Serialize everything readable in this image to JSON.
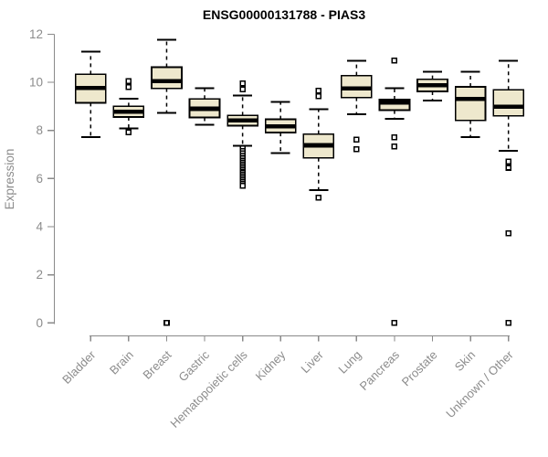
{
  "chart_data": {
    "type": "boxplot",
    "title": "ENSG00000131788 - PIAS3",
    "ylabel": "Expression",
    "xlabel": "",
    "ylim": [
      0,
      12
    ],
    "yticks": [
      0,
      2,
      4,
      6,
      8,
      10,
      12
    ],
    "grid": false,
    "legend": null,
    "categories": [
      "Bladder",
      "Brain",
      "Breast",
      "Gastric",
      "Hematopoietic cells",
      "Kidney",
      "Liver",
      "Lung",
      "Pancreas",
      "Prostate",
      "Skin",
      "Unknown / Other"
    ],
    "series": [
      {
        "name": "Bladder",
        "whisker_low": 7.73,
        "q1": 9.15,
        "median": 9.76,
        "q3": 10.33,
        "whisker_high": 11.28,
        "outliers": []
      },
      {
        "name": "Brain",
        "whisker_low": 8.09,
        "q1": 8.56,
        "median": 8.77,
        "q3": 9.0,
        "whisker_high": 9.32,
        "outliers": [
          10.05,
          9.8,
          7.92
        ]
      },
      {
        "name": "Breast",
        "whisker_low": 8.73,
        "q1": 9.75,
        "median": 10.05,
        "q3": 10.63,
        "whisker_high": 11.77,
        "outliers": [
          0
        ]
      },
      {
        "name": "Gastric",
        "whisker_low": 8.23,
        "q1": 8.54,
        "median": 8.9,
        "q3": 9.31,
        "whisker_high": 9.75,
        "outliers": []
      },
      {
        "name": "Hematopoietic cells",
        "whisker_low": 7.37,
        "q1": 8.2,
        "median": 8.42,
        "q3": 8.62,
        "whisker_high": 9.45,
        "outliers": [
          9.95,
          9.7,
          7.25,
          7.15,
          7.05,
          6.95,
          6.85,
          6.75,
          6.66,
          6.58,
          6.5,
          6.42,
          6.34,
          6.26,
          6.18,
          6.1,
          6.02,
          5.94,
          5.86,
          5.78,
          5.7
        ]
      },
      {
        "name": "Kidney",
        "whisker_low": 7.06,
        "q1": 7.91,
        "median": 8.17,
        "q3": 8.46,
        "whisker_high": 9.18,
        "outliers": []
      },
      {
        "name": "Liver",
        "whisker_low": 5.51,
        "q1": 6.86,
        "median": 7.38,
        "q3": 7.85,
        "whisker_high": 8.89,
        "outliers": [
          9.65,
          9.42,
          5.2
        ]
      },
      {
        "name": "Lung",
        "whisker_low": 8.67,
        "q1": 9.37,
        "median": 9.75,
        "q3": 10.28,
        "whisker_high": 10.89,
        "outliers": [
          7.62,
          7.22
        ]
      },
      {
        "name": "Pancreas",
        "whisker_low": 8.48,
        "q1": 8.84,
        "median": 9.15,
        "q3": 9.28,
        "whisker_high": 9.75,
        "outliers": [
          10.9,
          7.72,
          7.34,
          0
        ]
      },
      {
        "name": "Prostate",
        "whisker_low": 9.24,
        "q1": 9.62,
        "median": 9.88,
        "q3": 10.13,
        "whisker_high": 10.44,
        "outliers": []
      },
      {
        "name": "Skin",
        "whisker_low": 7.72,
        "q1": 8.42,
        "median": 9.31,
        "q3": 9.81,
        "whisker_high": 10.44,
        "outliers": []
      },
      {
        "name": "Unknown / Other",
        "whisker_low": 7.15,
        "q1": 8.61,
        "median": 8.99,
        "q3": 9.69,
        "whisker_high": 10.89,
        "outliers": [
          6.7,
          6.45,
          3.73,
          0
        ]
      }
    ],
    "colors": {
      "box_fill": "#EEE8CD",
      "box_stroke": "#000000",
      "median": "#000000",
      "whisker": "#000000",
      "outlier_stroke": "#000000",
      "outlier_fill": "#ffffff",
      "axis": "#8a8a8a",
      "tick_label": "#8c8c8c",
      "title": "#000000",
      "background": "#ffffff"
    }
  }
}
